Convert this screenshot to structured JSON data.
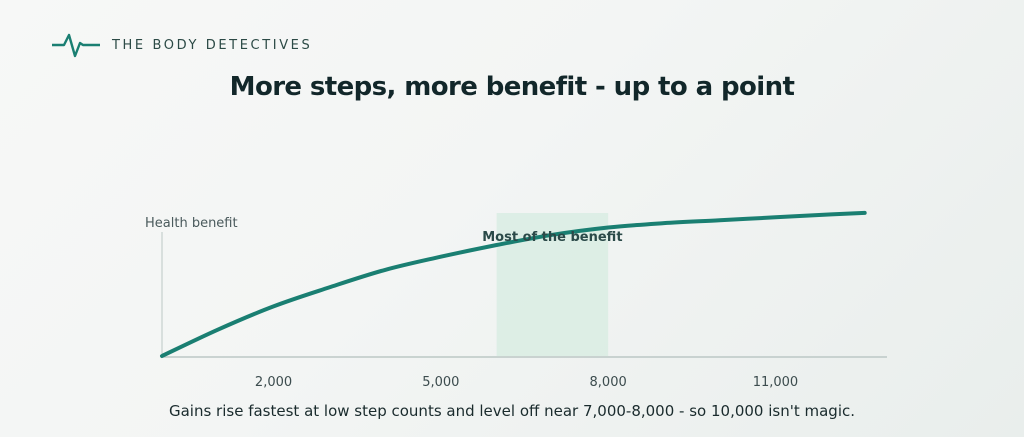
{
  "brand": {
    "name": "THE BODY DETECTIVES",
    "icon": "heartbeat-pulse-icon",
    "color": "#1a7f72"
  },
  "chart_data": {
    "type": "line",
    "title": "More steps, more benefit - up to a point",
    "subtitle": "",
    "caption": "Gains rise fastest at low step counts and level off near 7,000-8,000 - so 10,000 isn't magic.",
    "xlabel": "",
    "ylabel": "Health benefit",
    "xlim": [
      0,
      13000
    ],
    "ylim": [
      0,
      1
    ],
    "x_ticks": [
      2000,
      5000,
      8000,
      11000
    ],
    "x_tick_labels": [
      "2,000",
      "5,000",
      "8,000",
      "11,000"
    ],
    "grid": false,
    "legend": "none",
    "series": [
      {
        "x": [
          0,
          1000,
          2000,
          3000,
          4000,
          5000,
          6000,
          7000,
          8000,
          9000,
          10000,
          11000,
          12000,
          12600
        ],
        "values": [
          0,
          0.18,
          0.34,
          0.47,
          0.59,
          0.68,
          0.76,
          0.83,
          0.88,
          0.91,
          0.93,
          0.95,
          0.97,
          0.98
        ],
        "color": "#1a7f72"
      }
    ],
    "highlight_band": {
      "x_range": [
        6000,
        8000
      ],
      "label": "Most of the benefit",
      "color": "#d9ece3"
    },
    "colors": {
      "axis": "#bcc8c5",
      "band": "#d9ece3",
      "line": "#1a7f72"
    }
  }
}
